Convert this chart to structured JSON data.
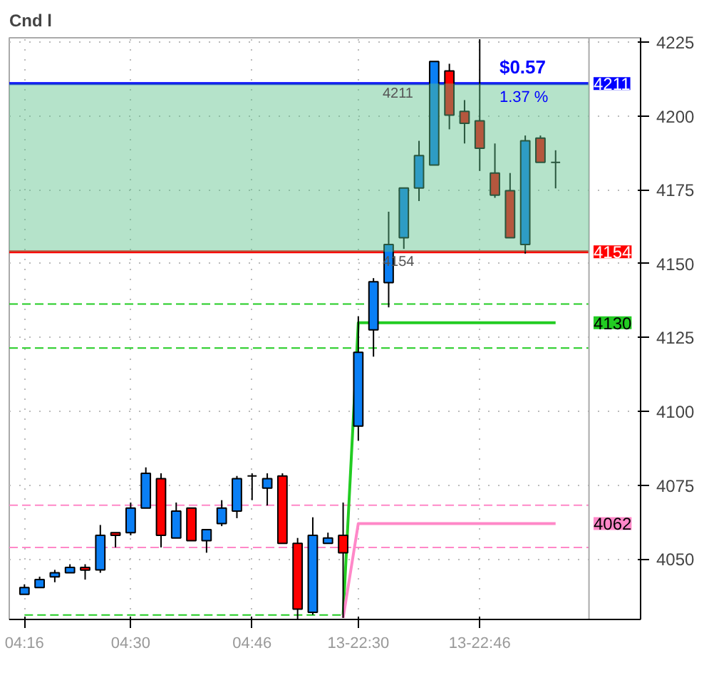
{
  "chart_data": {
    "type": "candlestick",
    "title": "Cnd l",
    "categories": [
      "04:16",
      null,
      null,
      null,
      null,
      null,
      null,
      "04:30",
      null,
      null,
      null,
      null,
      null,
      null,
      null,
      "04:46",
      null,
      null,
      null,
      null,
      null,
      null,
      "13-22:30",
      null,
      null,
      null,
      null,
      null,
      null,
      null,
      "13-22:46",
      null,
      null,
      null,
      null,
      null
    ],
    "ohlc": [
      [
        4038.0,
        4041.4,
        4038.0,
        4040.3
      ],
      [
        4040.3,
        4044.0,
        4040.3,
        4043.0
      ],
      [
        4043.9,
        4046.3,
        4042.1,
        4045.3
      ],
      [
        4045.3,
        4048.2,
        4045.3,
        4047.1
      ],
      [
        4047.1,
        4048.2,
        4043.0,
        4046.2
      ],
      [
        4046.3,
        4061.5,
        4045.3,
        4058.0
      ],
      [
        4058.9,
        4058.9,
        4053.9,
        4058.0
      ],
      [
        4058.9,
        4069.1,
        4058.0,
        4067.2
      ],
      [
        4067.2,
        4081.0,
        4067.2,
        4079.0
      ],
      [
        4077.2,
        4079.0,
        4053.9,
        4058.0
      ],
      [
        4057.1,
        4069.1,
        4057.1,
        4066.2
      ],
      [
        4067.2,
        4067.2,
        4056.2,
        4056.2
      ],
      [
        4056.2,
        4059.9,
        4052.1,
        4059.9
      ],
      [
        4062.0,
        4069.9,
        4061.1,
        4067.2
      ],
      [
        4066.2,
        4078.1,
        4063.8,
        4077.2
      ],
      [
        4078.1,
        4079.0,
        4069.9,
        4078.1
      ],
      [
        4074.0,
        4079.0,
        4068.1,
        4077.2
      ],
      [
        4078.1,
        4079.0,
        4055.3,
        4055.3
      ],
      [
        4055.3,
        4057.1,
        4029.6,
        4033.0
      ],
      [
        4031.9,
        4064.1,
        4031.1,
        4058.0
      ],
      [
        4055.3,
        4058.9,
        4055.3,
        4057.1
      ],
      [
        4058.0,
        4069.1,
        4030.0,
        4052.1
      ],
      [
        4095.0,
        4132.2,
        4090.0,
        4120.0
      ],
      [
        4127.6,
        4145.1,
        4118.5,
        4143.9
      ],
      [
        4143.6,
        4167.6,
        4135.2,
        4156.5
      ],
      [
        4158.8,
        4175.6,
        4155.0,
        4175.6
      ],
      [
        4175.6,
        4191.6,
        4171.2,
        4186.6
      ],
      [
        4183.4,
        4218.5,
        4183.4,
        4218.5
      ],
      [
        4215.3,
        4217.7,
        4195.5,
        4200.3
      ],
      [
        4201.6,
        4205.4,
        4190.7,
        4197.5
      ],
      [
        4198.4,
        4226.0,
        4181.4,
        4189.1
      ],
      [
        4180.7,
        4190.7,
        4172.3,
        4173.2
      ],
      [
        4174.7,
        4180.7,
        4158.8,
        4158.8
      ],
      [
        4156.5,
        4193.4,
        4153.4,
        4191.6
      ],
      [
        4192.5,
        4193.4,
        4184.3,
        4184.3
      ],
      [
        4184.3,
        4188.4,
        4175.5,
        4184.3
      ]
    ],
    "colors": [
      "#0a7ff5",
      "#0a7ff5",
      "#0a7ff5",
      "#0a7ff5",
      "#ff0000",
      "#0a7ff5",
      "#ff0000",
      "#0a7ff5",
      "#0a7ff5",
      "#ff0000",
      "#0a7ff5",
      "#ff0000",
      "#0a7ff5",
      "#0a7ff5",
      "#0a7ff5",
      "#000000",
      "#0a7ff5",
      "#ff0000",
      "#ff0000",
      "#0a7ff5",
      "#0a7ff5",
      "#ff0000",
      "#0a7ff5",
      "#0a7ff5",
      "#0a7ff5",
      "#0a7ff5",
      "#0a7ff5",
      "#0a7ff5",
      "#ff0000",
      "#ff0000",
      "#ff0000",
      "#ff0000",
      "#ff0000",
      "#0a7ff5",
      "#ff0000",
      "#000000"
    ],
    "series": [
      {
        "type": "line",
        "color": "#22cc22",
        "line_style": "dashed",
        "values": [
          4031,
          4031,
          4031,
          4031,
          4031,
          4031,
          4031,
          4031,
          4031,
          4031,
          4031,
          4031,
          4031,
          4031,
          4031,
          4031,
          4031,
          4031,
          4031,
          4031,
          4031,
          4031,
          null,
          null,
          null,
          null,
          null,
          null,
          null,
          null,
          null,
          null,
          null,
          null,
          null,
          null
        ]
      },
      {
        "type": "line",
        "name": "4130",
        "color": "#22cc22",
        "line_style": "solid",
        "values": [
          null,
          null,
          null,
          null,
          null,
          null,
          null,
          null,
          null,
          null,
          null,
          null,
          null,
          null,
          null,
          null,
          null,
          null,
          null,
          null,
          null,
          4031,
          4130,
          4130,
          4130,
          4130,
          4130,
          4130,
          4130,
          4130,
          4130,
          4130,
          4130,
          4130,
          4130,
          4130
        ]
      },
      {
        "type": "line",
        "name": "4062",
        "color": "#ff88c8",
        "line_style": "solid",
        "values": [
          null,
          null,
          null,
          null,
          null,
          null,
          null,
          null,
          null,
          null,
          null,
          null,
          null,
          null,
          null,
          null,
          null,
          null,
          null,
          null,
          null,
          4030,
          4062,
          4062,
          4062,
          4062,
          4062,
          4062,
          4062,
          4062,
          4062,
          4062,
          4062,
          4062,
          4062,
          4062
        ]
      }
    ],
    "ref_lines": [
      {
        "axis": "y",
        "value": 4211,
        "label": "4211",
        "color": "#0000ff",
        "line_style": "solid"
      },
      {
        "axis": "y",
        "value": 4154,
        "label": "4154",
        "color": "#ff0000",
        "line_style": "solid"
      },
      {
        "axis": "y",
        "value": 4136.3,
        "color": "#22cc22",
        "line_style": "dashed"
      },
      {
        "axis": "y",
        "value": 4121.4,
        "color": "#22cc22",
        "line_style": "dashed"
      },
      {
        "axis": "y",
        "value": 4068.2,
        "color": "#ff88c8",
        "line_style": "dashed"
      },
      {
        "axis": "y",
        "value": 4053.9,
        "color": "#ff88c8",
        "line_style": "dashed"
      }
    ],
    "bands": [
      {
        "axis": "y",
        "from": 4154,
        "to": 4211,
        "color": "#5cc18a"
      }
    ],
    "annotations": [
      "$0.57",
      "1.37 %",
      {
        "text": "4211",
        "x": "13-22:30",
        "y": 4211
      },
      {
        "text": "4154",
        "x": "13-22:30",
        "y": 4154
      }
    ],
    "ylim": [
      4029.5,
      4226.5
    ],
    "yticks": [
      4050,
      4075,
      4100,
      4125,
      4150,
      4175,
      4200,
      4225
    ],
    "grid": true
  }
}
